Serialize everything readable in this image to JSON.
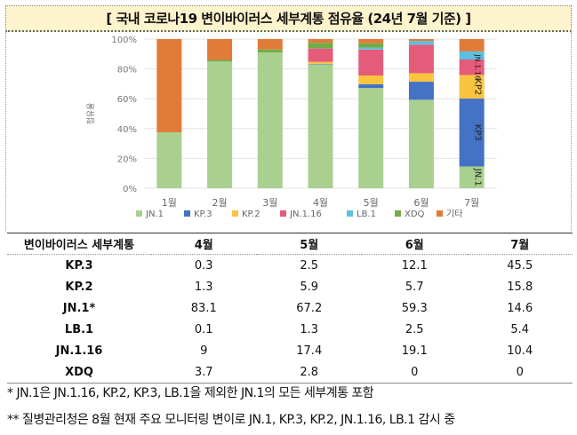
{
  "title": "[ 국내 코로나19 변이바이러스 세부계통 점유율 (24년 7월 기준) ]",
  "chart_data": {
    "type": "bar",
    "stacked": true,
    "categories": [
      "1월",
      "2월",
      "3월",
      "4월",
      "5월",
      "6월",
      "7월"
    ],
    "ylabel": "점유율",
    "ylim": [
      0,
      100
    ],
    "yticks": [
      "0%",
      "20%",
      "40%",
      "60%",
      "80%",
      "100%"
    ],
    "grid": true,
    "legend": "bottom",
    "series": [
      {
        "name": "JN.1",
        "color": "#a9d08e",
        "values": [
          37.5,
          85,
          91,
          83.1,
          67.2,
          59.3,
          14.6
        ]
      },
      {
        "name": "KP.3",
        "color": "#4472c4",
        "values": [
          0,
          0,
          0,
          0.3,
          2.5,
          12.1,
          45.5
        ]
      },
      {
        "name": "KP.2",
        "color": "#f9c440",
        "values": [
          0,
          0,
          0,
          1.3,
          5.9,
          5.7,
          15.8
        ]
      },
      {
        "name": "JN.1.16",
        "color": "#e45c7a",
        "values": [
          0,
          0,
          0,
          9,
          17.4,
          19.1,
          10.4
        ]
      },
      {
        "name": "LB.1",
        "color": "#5bc0e0",
        "values": [
          0,
          0,
          0,
          0.1,
          1.3,
          2.5,
          5.4
        ]
      },
      {
        "name": "XDQ",
        "color": "#70ad47",
        "values": [
          0,
          1,
          2,
          3.7,
          2.8,
          0,
          0
        ]
      },
      {
        "name": "기타",
        "color": "#e07b39",
        "values": [
          62.5,
          14,
          7,
          2.5,
          2.9,
          1.3,
          8.3
        ]
      }
    ],
    "bar_labels_july": [
      "JN.1",
      "KP3",
      "KP2",
      "JN.1.16"
    ]
  },
  "table": {
    "headers": [
      "변이바이러스 세부계통",
      "4월",
      "5월",
      "6월",
      "7월"
    ],
    "rows": [
      [
        "KP.3",
        "0.3",
        "2.5",
        "12.1",
        "45.5"
      ],
      [
        "KP.2",
        "1.3",
        "5.9",
        "5.7",
        "15.8"
      ],
      [
        "JN.1*",
        "83.1",
        "67.2",
        "59.3",
        "14.6"
      ],
      [
        "LB.1",
        "0.1",
        "1.3",
        "2.5",
        "5.4"
      ],
      [
        "JN.1.16",
        "9",
        "17.4",
        "19.1",
        "10.4"
      ],
      [
        "XDQ",
        "3.7",
        "2.8",
        "0",
        "0"
      ]
    ]
  },
  "notes": [
    "* JN.1은 JN.1.16, KP.2, KP.3, LB.1을 제외한 JN.1의 모든 세부계통 포함",
    "** 질병관리청은 8월 현재 주요 모니터링 변이로 JN.1, KP.3, KP.2, JN.1.16, LB.1 감시 중"
  ]
}
